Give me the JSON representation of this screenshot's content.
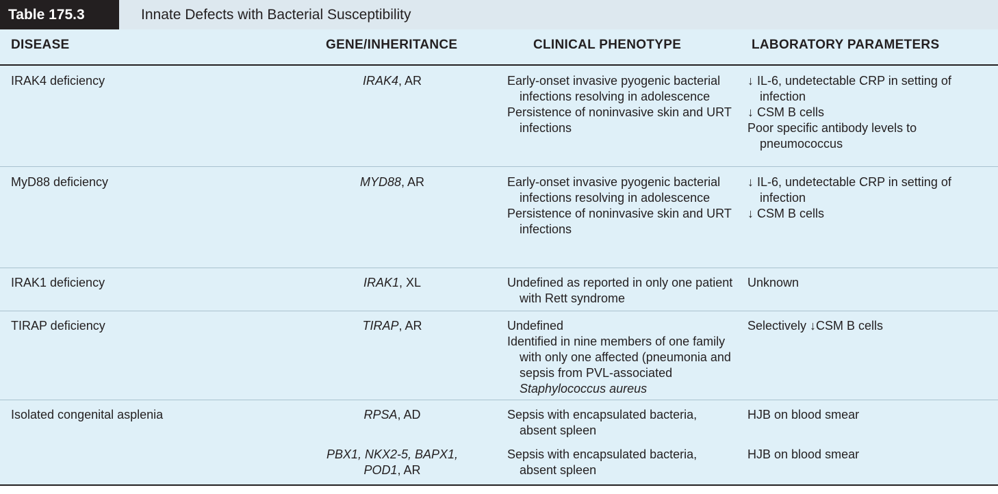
{
  "title_bar": {
    "table_number": "Table 175.3",
    "table_title": "Innate Defects with Bacterial Susceptibility"
  },
  "headers": {
    "disease": "DISEASE",
    "gene": "GENE/INHERITANCE",
    "clinical": "CLINICAL PHENOTYPE",
    "lab": "LABORATORY PARAMETERS"
  },
  "rows": [
    {
      "disease": "IRAK4 deficiency",
      "gene_italic": "IRAK4",
      "gene_rest": ", AR",
      "clinical": [
        "Early-onset invasive pyogenic bacterial infections resolving in adolescence",
        "Persistence of noninvasive skin and URT infections"
      ],
      "lab": [
        "↓ IL-6, undetectable CRP in setting of infection",
        "↓ CSM B cells",
        "Poor specific antibody levels to pneumococcus"
      ]
    },
    {
      "disease": "MyD88 deficiency",
      "gene_italic": "MYD88",
      "gene_rest": ", AR",
      "clinical": [
        "Early-onset invasive pyogenic bacterial infections resolving in adolescence",
        "Persistence of noninvasive skin and URT infections"
      ],
      "lab": [
        "↓ IL-6, undetectable CRP in setting of infection",
        "↓ CSM B cells"
      ]
    },
    {
      "disease": "IRAK1 deficiency",
      "gene_italic": "IRAK1",
      "gene_rest": ", XL",
      "clinical": [
        "Undefined as reported in only one patient with Rett syndrome"
      ],
      "lab": [
        "Unknown"
      ]
    },
    {
      "disease": "TIRAP deficiency",
      "gene_italic": "TIRAP",
      "gene_rest": ", AR",
      "clinical": [
        "Undefined"
      ],
      "clinical_extra_prefix": "Identified in nine members of one family with only one affected (pneumonia and sepsis from PVL-associated ",
      "clinical_extra_italic": "Staphylococcus aureus",
      "lab": [
        "Selectively ↓CSM B cells"
      ]
    },
    {
      "disease": "Isolated congenital asplenia",
      "gene_italic": "RPSA",
      "gene_rest": ", AD",
      "clinical": [
        "Sepsis with encapsulated bacteria, absent spleen"
      ],
      "lab": [
        "HJB on blood smear"
      ]
    },
    {
      "disease": "",
      "gene_italic": "PBX1, NKX2-5, BAPX1, POD1",
      "gene_rest": ", AR",
      "clinical": [
        "Sepsis with encapsulated bacteria, absent spleen"
      ],
      "lab": [
        "HJB on blood smear"
      ]
    }
  ]
}
